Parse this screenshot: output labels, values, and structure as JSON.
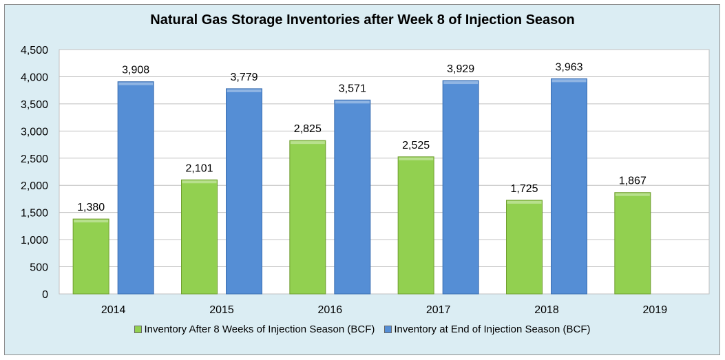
{
  "chart_data": {
    "type": "bar",
    "title": "Natural Gas Storage Inventories after Week 8 of Injection Season",
    "categories": [
      "2014",
      "2015",
      "2016",
      "2017",
      "2018",
      "2019"
    ],
    "series": [
      {
        "name": "Inventory After 8 Weeks of Injection Season (BCF)",
        "color": "#92d050",
        "values": [
          1380,
          2101,
          2825,
          2525,
          1725,
          1867
        ],
        "labels": [
          "1,380",
          "2,101",
          "2,825",
          "2,525",
          "1,725",
          "1,867"
        ]
      },
      {
        "name": "Inventory at End of Injection Season (BCF)",
        "color": "#558ed5",
        "values": [
          3908,
          3779,
          3571,
          3929,
          3963,
          null
        ],
        "labels": [
          "3,908",
          "3,779",
          "3,571",
          "3,929",
          "3,963",
          null
        ]
      }
    ],
    "ylim": [
      0,
      4500
    ],
    "yticks": [
      0,
      500,
      1000,
      1500,
      2000,
      2500,
      3000,
      3500,
      4000,
      4500
    ],
    "ytick_labels": [
      "0",
      "500",
      "1,000",
      "1,500",
      "2,000",
      "2,500",
      "3,000",
      "3,500",
      "4,000",
      "4,500"
    ],
    "xlabel": "",
    "ylabel": "",
    "grid": true,
    "legend": "bottom"
  }
}
